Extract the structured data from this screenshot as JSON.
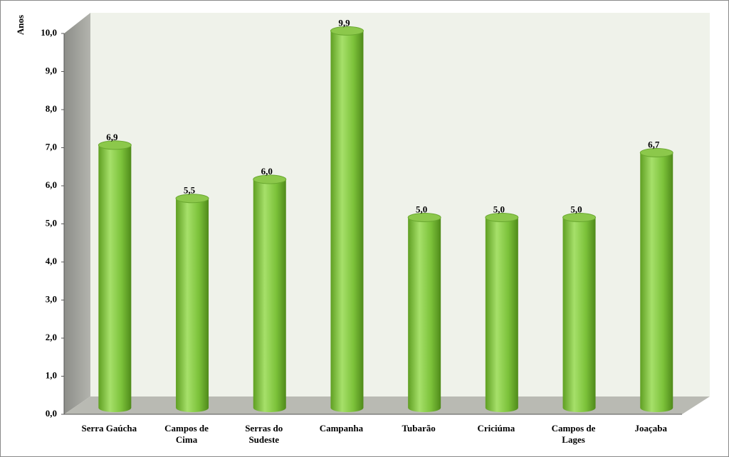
{
  "chart_data": {
    "type": "bar",
    "y_label": "Anos",
    "categories": [
      "Serra Gaúcha",
      "Campos de Cima",
      "Serras do Sudeste",
      "Campanha",
      "Tubarão",
      "Criciúma",
      "Campos de Lages",
      "Joaçaba"
    ],
    "values": [
      6.9,
      5.5,
      6.0,
      9.9,
      5.0,
      5.0,
      5.0,
      6.7
    ],
    "value_labels": [
      "6,9",
      "5,5",
      "6,0",
      "9,9",
      "5,0",
      "5,0",
      "5,0",
      "6,7"
    ],
    "color": "#7cc23a",
    "ylim": [
      0,
      10
    ],
    "yticks": [
      {
        "value": 0,
        "label": "0,0"
      },
      {
        "value": 1,
        "label": "1,0"
      },
      {
        "value": 2,
        "label": "2,0"
      },
      {
        "value": 3,
        "label": "3,0"
      },
      {
        "value": 4,
        "label": "4,0"
      },
      {
        "value": 5,
        "label": "5,0"
      },
      {
        "value": 6,
        "label": "6,0"
      },
      {
        "value": 7,
        "label": "7,0"
      },
      {
        "value": 8,
        "label": "8,0"
      },
      {
        "value": 9,
        "label": "9,0"
      },
      {
        "value": 10,
        "label": "10,0"
      }
    ]
  }
}
